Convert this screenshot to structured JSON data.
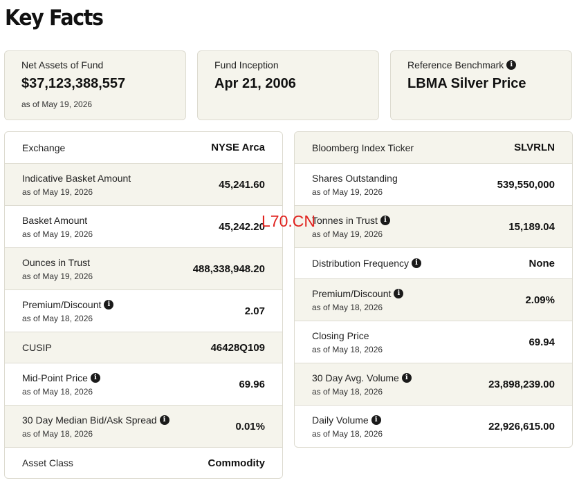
{
  "title": "Key Facts",
  "top_cards": [
    {
      "label": "Net Assets of Fund",
      "value": "$37,123,388,557",
      "as_of": "as of May 19, 2026",
      "info": false
    },
    {
      "label": "Fund Inception",
      "value": "Apr 21, 2006",
      "as_of": "",
      "info": false
    },
    {
      "label": "Reference Benchmark",
      "value": "LBMA Silver Price",
      "as_of": "",
      "info": true
    }
  ],
  "left_rows": [
    {
      "label": "Exchange",
      "as_of": "",
      "value": "NYSE Arca",
      "info": false,
      "shade": false
    },
    {
      "label": "Indicative Basket Amount",
      "as_of": "as of May 19, 2026",
      "value": "45,241.60",
      "info": false,
      "shade": true
    },
    {
      "label": "Basket Amount",
      "as_of": "as of May 19, 2026",
      "value": "45,242.20",
      "info": false,
      "shade": false
    },
    {
      "label": "Ounces in Trust",
      "as_of": "as of May 19, 2026",
      "value": "488,338,948.20",
      "info": false,
      "shade": true
    },
    {
      "label": "Premium/Discount",
      "as_of": "as of May 18, 2026",
      "value": "2.07",
      "info": true,
      "shade": false
    },
    {
      "label": "CUSIP",
      "as_of": "",
      "value": "46428Q109",
      "info": false,
      "shade": true
    },
    {
      "label": "Mid-Point Price",
      "as_of": "as of May 18, 2026",
      "value": "69.96",
      "info": true,
      "shade": false
    },
    {
      "label": "30 Day Median Bid/Ask Spread",
      "as_of": "as of May 18, 2026",
      "value": "0.01%",
      "info": true,
      "shade": true
    },
    {
      "label": "Asset Class",
      "as_of": "",
      "value": "Commodity",
      "info": false,
      "shade": false
    }
  ],
  "right_rows": [
    {
      "label": "Bloomberg Index Ticker",
      "as_of": "",
      "value": "SLVRLN",
      "info": false,
      "shade": true
    },
    {
      "label": "Shares Outstanding",
      "as_of": "as of May 19, 2026",
      "value": "539,550,000",
      "info": false,
      "shade": false
    },
    {
      "label": "Tonnes in Trust",
      "as_of": "as of May 19, 2026",
      "value": "15,189.04",
      "info": true,
      "shade": true
    },
    {
      "label": "Distribution Frequency",
      "as_of": "",
      "value": "None",
      "info": true,
      "shade": false
    },
    {
      "label": "Premium/Discount",
      "as_of": "as of May 18, 2026",
      "value": "2.09%",
      "info": true,
      "shade": true
    },
    {
      "label": "Closing Price",
      "as_of": "as of May 18, 2026",
      "value": "69.94",
      "info": false,
      "shade": false
    },
    {
      "label": "30 Day Avg. Volume",
      "as_of": "as of May 18, 2026",
      "value": "23,898,239.00",
      "info": true,
      "shade": true
    },
    {
      "label": "Daily Volume",
      "as_of": "as of May 18, 2026",
      "value": "22,926,615.00",
      "info": true,
      "shade": false
    }
  ],
  "info_glyph": "i",
  "watermark": "L70.CN",
  "colors": {
    "card_bg": "#f5f4ec",
    "border": "#dddbd0",
    "watermark": "#e0221e",
    "text": "#111111"
  }
}
